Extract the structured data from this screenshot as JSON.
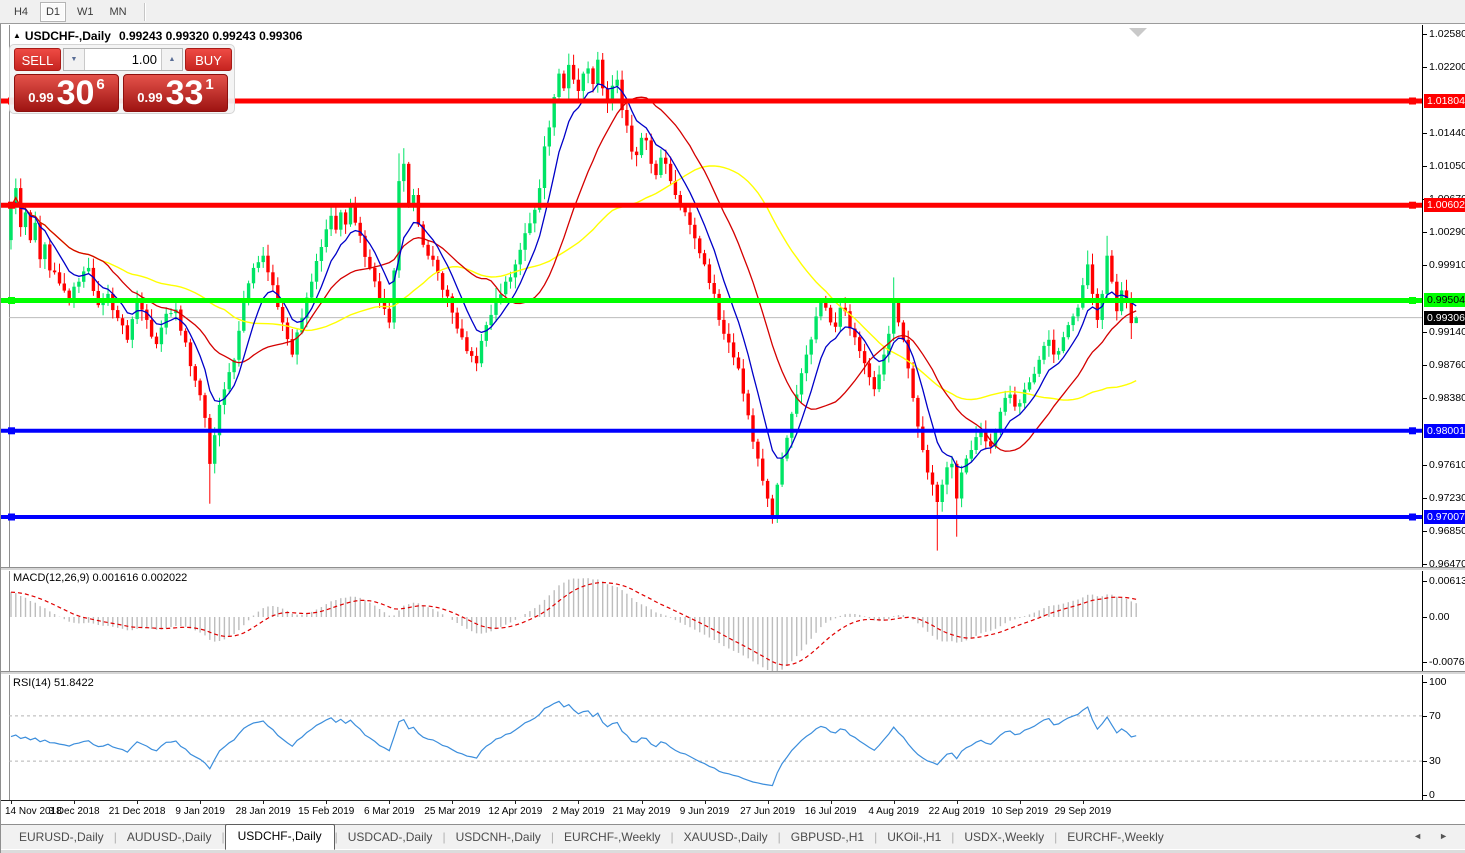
{
  "toolbar": {
    "timeframes": [
      "H4",
      "D1",
      "W1",
      "MN"
    ],
    "active_timeframe": "D1"
  },
  "title": {
    "marker": "▲",
    "symbol": "USDCHF-,Daily",
    "ohlc": "0.99243 0.99320 0.99243 0.99306"
  },
  "trade_panel": {
    "sell_label": "SELL",
    "buy_label": "BUY",
    "volume": "1.00",
    "spinner_down_icon": "▼",
    "spinner_up_icon": "▲",
    "sell_price": {
      "small": "0.99",
      "big": "30",
      "sup": "6"
    },
    "buy_price": {
      "small": "0.99",
      "big": "33",
      "sup": "1"
    }
  },
  "price_axis": {
    "ticks": [
      "1.02580",
      "1.02200",
      "1.01440",
      "1.01050",
      "1.00670",
      "1.00290",
      "0.99910",
      "0.99140",
      "0.98760",
      "0.98380",
      "0.97610",
      "0.97230",
      "0.96850",
      "0.96470"
    ],
    "badges": [
      {
        "text": "1.01804",
        "price": 1.01804,
        "bg": "#FF0000",
        "fg": "#FFFFFF"
      },
      {
        "text": "1.00602",
        "price": 1.00602,
        "bg": "#FF0000",
        "fg": "#FFFFFF"
      },
      {
        "text": "0.99504",
        "price": 0.99504,
        "bg": "#00FF00",
        "fg": "#000000"
      },
      {
        "text": "0.99306",
        "price": 0.99306,
        "bg": "#000000",
        "fg": "#FFFFFF"
      },
      {
        "text": "0.98001",
        "price": 0.98001,
        "bg": "#0000FF",
        "fg": "#FFFFFF"
      },
      {
        "text": "0.97007",
        "price": 0.97007,
        "bg": "#0000FF",
        "fg": "#FFFFFF"
      }
    ]
  },
  "hlines": [
    {
      "price": 1.01804,
      "color": "#FF0000",
      "width": 5
    },
    {
      "price": 1.00602,
      "color": "#FF0000",
      "width": 5
    },
    {
      "price": 0.99504,
      "color": "#00FF00",
      "width": 5
    },
    {
      "price": 0.98001,
      "color": "#0000FF",
      "width": 4
    },
    {
      "price": 0.97007,
      "color": "#0000FF",
      "width": 4
    }
  ],
  "current_price_line": 0.99306,
  "macd_panel": {
    "label": "MACD(12,26,9)",
    "values": "0.001616 0.002022",
    "axis": [
      {
        "text": "0.00613",
        "value": 0.00613
      },
      {
        "text": "0.00",
        "value": 0
      },
      {
        "text": "-0.007612",
        "value": -0.007612
      }
    ]
  },
  "rsi_panel": {
    "label": "RSI(14)",
    "value": "51.8422",
    "axis": [
      {
        "text": "100",
        "value": 100
      },
      {
        "text": "70",
        "value": 70
      },
      {
        "text": "30",
        "value": 30
      },
      {
        "text": "0",
        "value": 0
      }
    ],
    "levels": [
      70,
      30
    ]
  },
  "date_axis": {
    "labels": [
      "14 Nov 2018",
      "3 Dec 2018",
      "21 Dec 2018",
      "9 Jan 2019",
      "28 Jan 2019",
      "15 Feb 2019",
      "6 Mar 2019",
      "25 Mar 2019",
      "12 Apr 2019",
      "2 May 2019",
      "21 May 2019",
      "9 Jun 2019",
      "27 Jun 2019",
      "16 Jul 2019",
      "4 Aug 2019",
      "22 Aug 2019",
      "10 Sep 2019",
      "29 Sep 2019"
    ]
  },
  "tabs": {
    "items": [
      "EURUSD-,Daily",
      "AUDUSD-,Daily",
      "USDCHF-,Daily",
      "USDCAD-,Daily",
      "USDCNH-,Daily",
      "EURCHF-,Weekly",
      "XAUUSD-,Daily",
      "GBPUSD-,H1",
      "UKOil-,H1",
      "USDX-,Weekly",
      "EURCHF-,Weekly"
    ],
    "active_index": 2,
    "scroll_left_icon": "◄",
    "scroll_right_icon": "►"
  },
  "colors": {
    "bull": "#00E465",
    "bear": "#FF0000",
    "ma_fast": "#0000C8",
    "ma_mid": "#D40000",
    "ma_slow": "#FFFF00",
    "macd_hist": "#BDBDBD",
    "macd_signal": "#E00000",
    "rsi": "#3C8EDC",
    "current_line": "#BBBBBB"
  },
  "chart_data": {
    "type": "candlestick",
    "symbol": "USDCHF",
    "timeframe": "Daily",
    "count": 233,
    "visible_range": {
      "first_date": "14 Nov 2018",
      "last_date": "4 Oct 2019",
      "price_min": 0.9647,
      "price_max": 1.0258
    },
    "last_ohlc": {
      "open": 0.99243,
      "high": 0.9932,
      "low": 0.99243,
      "close": 0.99306
    },
    "close_anchors": [
      [
        0,
        1.0058
      ],
      [
        1,
        1.008
      ],
      [
        2,
        1.0035
      ],
      [
        3,
        1.0052
      ],
      [
        4,
        1.002
      ],
      [
        5,
        1.004
      ],
      [
        6,
        0.9998
      ],
      [
        7,
        1.0015
      ],
      [
        8,
        0.9985
      ],
      [
        10,
        0.997
      ],
      [
        12,
        0.995
      ],
      [
        14,
        0.9972
      ],
      [
        16,
        0.9988
      ],
      [
        18,
        0.9945
      ],
      [
        20,
        0.9958
      ],
      [
        22,
        0.993
      ],
      [
        24,
        0.9905
      ],
      [
        26,
        0.9952
      ],
      [
        28,
        0.9928
      ],
      [
        30,
        0.99
      ],
      [
        32,
        0.9935
      ],
      [
        34,
        0.994
      ],
      [
        36,
        0.9902
      ],
      [
        38,
        0.9858
      ],
      [
        40,
        0.9815
      ],
      [
        41,
        0.9762
      ],
      [
        42,
        0.9795
      ],
      [
        43,
        0.983
      ],
      [
        44,
        0.9848
      ],
      [
        46,
        0.9882
      ],
      [
        48,
        0.995
      ],
      [
        50,
        0.9988
      ],
      [
        52,
        1.0002
      ],
      [
        54,
        0.9968
      ],
      [
        56,
        0.9925
      ],
      [
        58,
        0.9888
      ],
      [
        60,
        0.993
      ],
      [
        62,
        0.9972
      ],
      [
        64,
        1.0012
      ],
      [
        66,
        1.0048
      ],
      [
        67,
        1.0032
      ],
      [
        68,
        1.0052
      ],
      [
        69,
        1.0038
      ],
      [
        70,
        1.0058
      ],
      [
        71,
        1.004
      ],
      [
        72,
        1.0025
      ],
      [
        74,
        0.9988
      ],
      [
        76,
        0.9952
      ],
      [
        78,
        0.9925
      ],
      [
        79,
        0.9985
      ],
      [
        80,
        1.0088
      ],
      [
        81,
        1.0108
      ],
      [
        82,
        1.006
      ],
      [
        83,
        1.0072
      ],
      [
        84,
        1.0038
      ],
      [
        86,
        1.0002
      ],
      [
        88,
        0.9982
      ],
      [
        90,
        0.9955
      ],
      [
        92,
        0.9918
      ],
      [
        94,
        0.9892
      ],
      [
        96,
        0.9878
      ],
      [
        98,
        0.9922
      ],
      [
        100,
        0.9952
      ],
      [
        102,
        0.9972
      ],
      [
        104,
        0.9992
      ],
      [
        106,
        1.0028
      ],
      [
        108,
        1.0055
      ],
      [
        109,
        1.008
      ],
      [
        110,
        1.0128
      ],
      [
        111,
        1.015
      ],
      [
        112,
        1.0185
      ],
      [
        113,
        1.0212
      ],
      [
        114,
        1.0195
      ],
      [
        115,
        1.0222
      ],
      [
        116,
        1.0205
      ],
      [
        117,
        1.0192
      ],
      [
        118,
        1.0212
      ],
      [
        119,
        1.0218
      ],
      [
        120,
        1.02
      ],
      [
        121,
        1.0228
      ],
      [
        122,
        1.0195
      ],
      [
        123,
        1.0178
      ],
      [
        124,
        1.0198
      ],
      [
        125,
        1.0205
      ],
      [
        126,
        1.017
      ],
      [
        127,
        1.0152
      ],
      [
        128,
        1.0122
      ],
      [
        129,
        1.0118
      ],
      [
        130,
        1.0138
      ],
      [
        131,
        1.0135
      ],
      [
        132,
        1.0108
      ],
      [
        133,
        1.0095
      ],
      [
        134,
        1.0115
      ],
      [
        135,
        1.0108
      ],
      [
        136,
        1.0088
      ],
      [
        137,
        1.0072
      ],
      [
        139,
        1.0052
      ],
      [
        141,
        1.0022
      ],
      [
        143,
        0.9992
      ],
      [
        145,
        0.9958
      ],
      [
        146,
        0.9928
      ],
      [
        147,
        0.9912
      ],
      [
        148,
        0.9902
      ],
      [
        150,
        0.9872
      ],
      [
        152,
        0.9818
      ],
      [
        154,
        0.9768
      ],
      [
        156,
        0.9722
      ],
      [
        157,
        0.9702
      ],
      [
        158,
        0.9738
      ],
      [
        159,
        0.9768
      ],
      [
        160,
        0.9792
      ],
      [
        162,
        0.9842
      ],
      [
        164,
        0.9888
      ],
      [
        166,
        0.9932
      ],
      [
        167,
        0.9948
      ],
      [
        168,
        0.9942
      ],
      [
        169,
        0.9925
      ],
      [
        170,
        0.992
      ],
      [
        171,
        0.9942
      ],
      [
        172,
        0.9938
      ],
      [
        173,
        0.9918
      ],
      [
        174,
        0.9908
      ],
      [
        175,
        0.9892
      ],
      [
        176,
        0.9878
      ],
      [
        177,
        0.9862
      ],
      [
        178,
        0.9848
      ],
      [
        179,
        0.9865
      ],
      [
        180,
        0.9888
      ],
      [
        181,
        0.9912
      ],
      [
        182,
        0.9948
      ],
      [
        183,
        0.9925
      ],
      [
        184,
        0.9905
      ],
      [
        185,
        0.9872
      ],
      [
        186,
        0.9838
      ],
      [
        187,
        0.9805
      ],
      [
        188,
        0.9778
      ],
      [
        189,
        0.9752
      ],
      [
        190,
        0.9738
      ],
      [
        191,
        0.9718
      ],
      [
        192,
        0.9738
      ],
      [
        193,
        0.9758
      ],
      [
        194,
        0.9762
      ],
      [
        195,
        0.9722
      ],
      [
        196,
        0.9752
      ],
      [
        197,
        0.9768
      ],
      [
        198,
        0.9778
      ],
      [
        200,
        0.9802
      ],
      [
        201,
        0.9788
      ],
      [
        202,
        0.9782
      ],
      [
        203,
        0.98
      ],
      [
        204,
        0.9822
      ],
      [
        205,
        0.9838
      ],
      [
        206,
        0.9842
      ],
      [
        207,
        0.9828
      ],
      [
        208,
        0.9832
      ],
      [
        210,
        0.9856
      ],
      [
        212,
        0.9882
      ],
      [
        213,
        0.9898
      ],
      [
        214,
        0.9905
      ],
      [
        215,
        0.9888
      ],
      [
        216,
        0.9892
      ],
      [
        217,
        0.9908
      ],
      [
        218,
        0.9922
      ],
      [
        219,
        0.9932
      ],
      [
        220,
        0.9942
      ],
      [
        221,
        0.9968
      ],
      [
        222,
        0.9992
      ],
      [
        223,
        0.9958
      ],
      [
        224,
        0.9928
      ],
      [
        225,
        0.9958
      ],
      [
        226,
        1.0002
      ],
      [
        227,
        0.9972
      ],
      [
        228,
        0.9938
      ],
      [
        229,
        0.9962
      ],
      [
        230,
        0.9948
      ],
      [
        231,
        0.99243
      ],
      [
        232,
        0.99306
      ]
    ],
    "wick_overrides": {
      "41": {
        "low": 0.9716
      },
      "80": {
        "high": 1.012
      },
      "81": {
        "high": 1.0126
      },
      "115": {
        "high": 1.0235
      },
      "121": {
        "high": 1.0237
      },
      "157": {
        "low": 0.9693
      },
      "182": {
        "high": 0.9977
      },
      "191": {
        "low": 0.9662
      },
      "195": {
        "low": 0.9678
      },
      "222": {
        "high": 1.0008
      },
      "226": {
        "high": 1.0025
      },
      "231": {
        "low": 0.9906
      },
      "232": {
        "high": 0.9932,
        "low": 0.99243
      }
    },
    "moving_averages": [
      {
        "name": "fast",
        "color": "#0000C8"
      },
      {
        "name": "medium",
        "color": "#D40000"
      },
      {
        "name": "slow",
        "color": "#FFFF00"
      }
    ]
  }
}
